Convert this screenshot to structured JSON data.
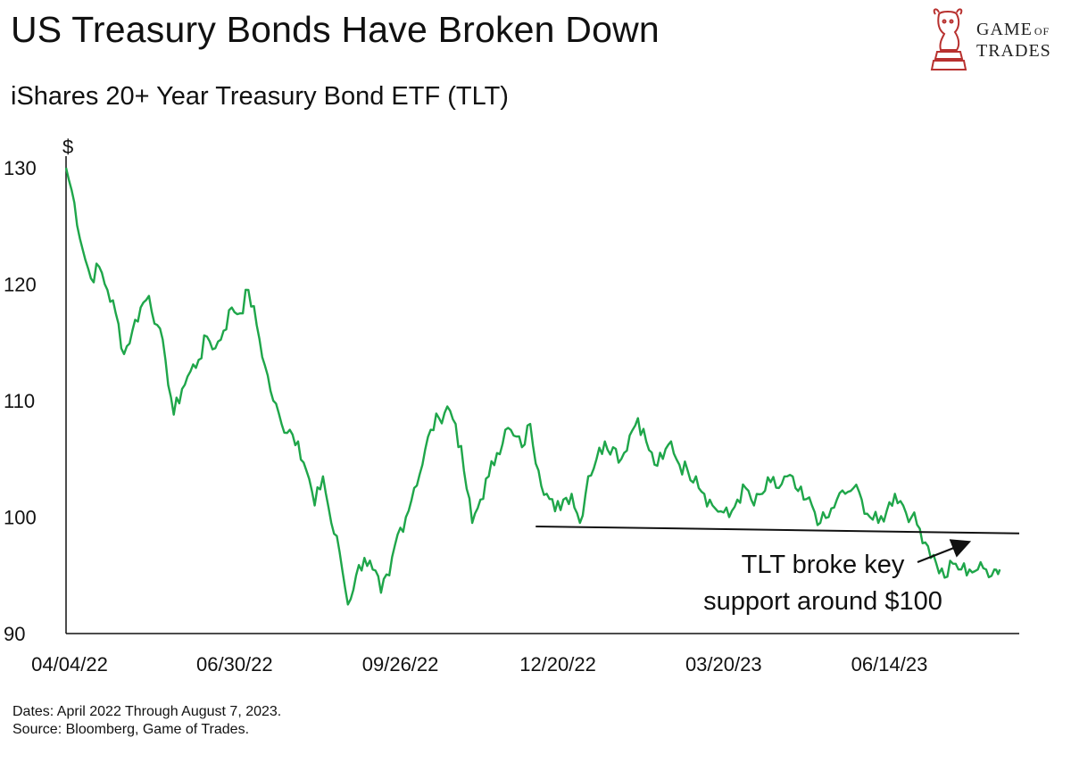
{
  "header": {
    "title": "US Treasury Bonds Have Broken Down",
    "subtitle": "iShares 20+ Year Treasury Bond ETF (TLT)"
  },
  "logo": {
    "line1": "GAME",
    "line1_small": "OF",
    "line2": "TRADES",
    "icon": "bull-chess-knight-icon",
    "color": "#b8312f"
  },
  "footnote": {
    "line1": "Dates: April 2022 Through August 7, 2023.",
    "line2": "Source: Bloomberg, Game of Trades."
  },
  "chart_data": {
    "type": "line",
    "title": "iShares 20+ Year Treasury Bond ETF (TLT)",
    "ylabel": "$",
    "xlabel": "",
    "ylim": [
      90,
      130
    ],
    "yticks": [
      90,
      100,
      110,
      120,
      130
    ],
    "xlim": [
      0,
      345
    ],
    "xticks": [
      {
        "label": "04/04/22",
        "x": 0
      },
      {
        "label": "06/30/22",
        "x": 61
      },
      {
        "label": "09/26/22",
        "x": 121
      },
      {
        "label": "12/20/22",
        "x": 178
      },
      {
        "label": "03/20/23",
        "x": 238
      },
      {
        "label": "06/14/23",
        "x": 298
      }
    ],
    "line_color": "#1fa64a",
    "series": [
      {
        "name": "TLT",
        "x": [
          0,
          3,
          6,
          9,
          12,
          15,
          18,
          21,
          24,
          27,
          30,
          33,
          36,
          39,
          42,
          45,
          48,
          51,
          54,
          57,
          60,
          63,
          66,
          69,
          72,
          75,
          78,
          81,
          84,
          87,
          90,
          93,
          96,
          99,
          102,
          105,
          108,
          111,
          114,
          117,
          120,
          123,
          126,
          129,
          132,
          135,
          138,
          141,
          144,
          147,
          150,
          153,
          156,
          159,
          162,
          165,
          168,
          171,
          174,
          177,
          180,
          183,
          186,
          189,
          192,
          195,
          198,
          201,
          204,
          207,
          210,
          213,
          216,
          219,
          222,
          225,
          228,
          231,
          234,
          237,
          240,
          243,
          246,
          249,
          252,
          255,
          258,
          261,
          264,
          267,
          270,
          273,
          276,
          279,
          282,
          285,
          288,
          291,
          294,
          297,
          300,
          303,
          306,
          309,
          312,
          315,
          318,
          321,
          324,
          327,
          330,
          333,
          336,
          338
        ],
        "values": [
          130.0,
          127.0,
          123.0,
          120.5,
          121.5,
          119.5,
          117.5,
          114.0,
          116.0,
          118.0,
          119.0,
          116.5,
          113.5,
          108.8,
          111.0,
          112.5,
          113.5,
          115.5,
          114.5,
          116.0,
          118.0,
          117.5,
          119.5,
          116.5,
          113.0,
          110.0,
          108.0,
          107.5,
          106.5,
          104.0,
          101.0,
          103.5,
          99.5,
          97.0,
          92.5,
          95.0,
          96.5,
          95.5,
          93.5,
          95.0,
          98.5,
          100.0,
          102.5,
          104.5,
          107.5,
          108.5,
          109.5,
          108.0,
          104.0,
          99.5,
          101.5,
          103.5,
          105.5,
          107.5,
          107.0,
          106.0,
          108.0,
          104.0,
          102.0,
          100.5,
          101.5,
          102.0,
          99.5,
          103.5,
          105.0,
          106.5,
          106.0,
          105.0,
          107.0,
          108.5,
          106.5,
          104.5,
          105.0,
          106.5,
          104.5,
          104.0,
          103.5,
          102.0,
          101.0,
          100.5,
          100.0,
          101.5,
          102.5,
          101.0,
          102.0,
          103.0,
          102.5,
          103.5,
          102.5,
          101.5,
          101.0,
          99.5,
          100.0,
          101.5,
          102.0,
          102.5,
          101.5,
          100.0,
          99.5,
          100.5,
          102.0,
          101.0,
          100.0,
          99.0,
          97.5,
          96.0,
          94.8,
          96.0,
          95.5,
          95.5,
          95.5,
          95.5,
          95.5,
          95.5
        ],
        "values_note": "daily closes approximated from the plotted line"
      }
    ],
    "support_line": {
      "label": "support",
      "x_start": 170,
      "x_end": 345,
      "y_start": 99.2,
      "y_end": 98.6
    },
    "annotation": {
      "line1": "TLT broke key",
      "line2": "support around $100"
    }
  }
}
